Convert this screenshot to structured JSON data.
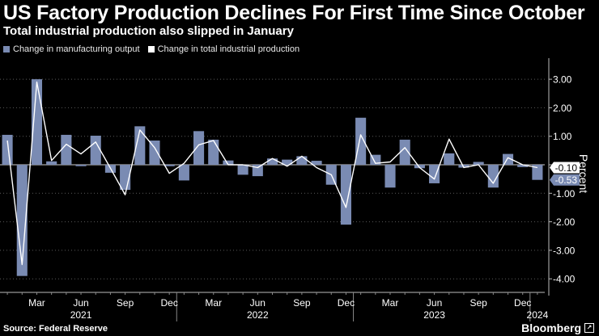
{
  "header": {
    "title": "US Factory Production Declines For First Time Since October",
    "subtitle": "Total industrial production also slipped in January"
  },
  "legend": {
    "bar_label": "Change in manufacturing output",
    "line_label": "Change in total industrial production"
  },
  "footer": {
    "source": "Source: Federal Reserve",
    "brand": "Bloomberg"
  },
  "colors": {
    "bar": "#7a8bb3",
    "line": "#ffffff",
    "background": "#000000"
  },
  "chart_data": {
    "type": "bar",
    "title": "US Factory Production Declines For First Time Since October",
    "ylabel": "Percent",
    "ylim": [
      -4.3,
      3.7
    ],
    "yticks": [
      "3.00",
      "2.00",
      "1.00",
      "-1.00",
      "-2.00",
      "-3.00",
      "-4.00"
    ],
    "ytick_values": [
      3,
      2,
      1,
      -1,
      -2,
      -3,
      -4
    ],
    "months": [
      "Jan 2021",
      "Feb 2021",
      "Mar 2021",
      "Apr 2021",
      "May 2021",
      "Jun 2021",
      "Jul 2021",
      "Aug 2021",
      "Sep 2021",
      "Oct 2021",
      "Nov 2021",
      "Dec 2021",
      "Jan 2022",
      "Feb 2022",
      "Mar 2022",
      "Apr 2022",
      "May 2022",
      "Jun 2022",
      "Jul 2022",
      "Aug 2022",
      "Sep 2022",
      "Oct 2022",
      "Nov 2022",
      "Dec 2022",
      "Jan 2023",
      "Feb 2023",
      "Mar 2023",
      "Apr 2023",
      "May 2023",
      "Jun 2023",
      "Jul 2023",
      "Aug 2023",
      "Sep 2023",
      "Oct 2023",
      "Nov 2023",
      "Dec 2023",
      "Jan 2024"
    ],
    "x_tick_labels": [
      {
        "index": 2,
        "label": "Mar"
      },
      {
        "index": 5,
        "label": "Jun"
      },
      {
        "index": 8,
        "label": "Sep"
      },
      {
        "index": 11,
        "label": "Dec"
      },
      {
        "index": 14,
        "label": "Mar"
      },
      {
        "index": 17,
        "label": "Jun"
      },
      {
        "index": 20,
        "label": "Sep"
      },
      {
        "index": 23,
        "label": "Dec"
      },
      {
        "index": 26,
        "label": "Mar"
      },
      {
        "index": 29,
        "label": "Jun"
      },
      {
        "index": 32,
        "label": "Sep"
      },
      {
        "index": 35,
        "label": "Dec"
      }
    ],
    "year_labels": [
      {
        "index": 5,
        "label": "2021"
      },
      {
        "index": 17,
        "label": "2022"
      },
      {
        "index": 29,
        "label": "2023"
      },
      {
        "index": 36,
        "label": "2024"
      }
    ],
    "series": [
      {
        "name": "Change in manufacturing output",
        "type": "bar",
        "values": [
          1.05,
          -3.9,
          3.0,
          0.12,
          1.05,
          -0.05,
          1.02,
          -0.28,
          -0.88,
          1.35,
          0.85,
          -0.05,
          -0.55,
          1.18,
          0.88,
          0.15,
          -0.35,
          -0.4,
          0.22,
          0.18,
          0.3,
          0.14,
          -0.7,
          -2.1,
          1.65,
          0.35,
          -0.8,
          0.88,
          -0.12,
          -0.65,
          0.4,
          -0.1,
          0.1,
          -0.8,
          0.38,
          -0.08,
          -0.53
        ]
      },
      {
        "name": "Change in total industrial production",
        "type": "line",
        "values": [
          0.85,
          -3.5,
          2.9,
          0.15,
          0.72,
          0.38,
          0.8,
          -0.12,
          -1.05,
          1.22,
          0.6,
          -0.3,
          0.05,
          0.7,
          0.85,
          0.0,
          0.0,
          -0.1,
          0.22,
          -0.05,
          0.3,
          -0.1,
          -0.35,
          -1.5,
          1.05,
          0.05,
          0.1,
          0.6,
          -0.1,
          -0.5,
          0.9,
          -0.1,
          0.0,
          -0.65,
          0.25,
          0.0,
          -0.1
        ]
      }
    ],
    "end_labels": [
      "-0.10",
      "-0.53"
    ]
  }
}
